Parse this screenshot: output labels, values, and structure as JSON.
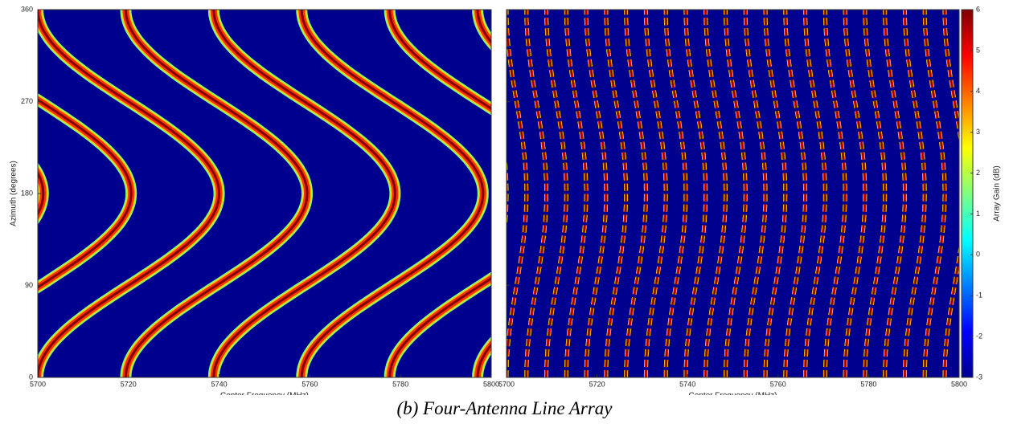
{
  "chart_data": [
    {
      "type": "heatmap",
      "xlabel": "Center Frequency (MHz)",
      "ylabel": "Azimuth (degrees)",
      "xlim": [
        5700,
        5800
      ],
      "xticks": [
        5700,
        5720,
        5740,
        5760,
        5780,
        5800
      ],
      "ylim": [
        0,
        360
      ],
      "yticks": [
        0,
        90,
        180,
        270,
        360
      ],
      "show_ytick_labels": true,
      "colormap": "jet"
    },
    {
      "type": "heatmap",
      "xlabel": "Center Frequency (MHz)",
      "xlim": [
        5700,
        5800
      ],
      "xticks": [
        5700,
        5720,
        5740,
        5760,
        5780,
        5800
      ],
      "ylim": [
        0,
        360
      ],
      "yticks": [
        0,
        90,
        180,
        270,
        360
      ],
      "show_ytick_labels": false,
      "colormap": "jet",
      "colorbar": {
        "label": "Array Gain (dB)",
        "lim": [
          -3,
          6
        ],
        "ticks": [
          -3,
          -2,
          -1,
          0,
          1,
          2,
          3,
          4,
          5,
          6
        ]
      }
    }
  ],
  "caption": "(b) Four-Antenna Line Array"
}
